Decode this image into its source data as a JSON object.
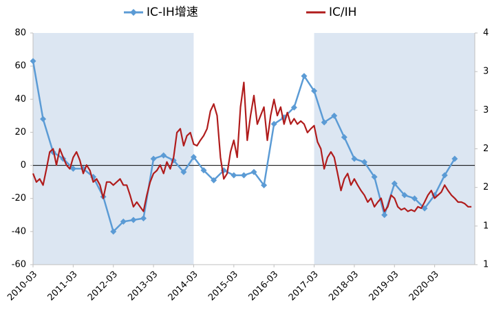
{
  "chart_data": {
    "type": "line",
    "xlim": [
      "2010-03",
      "2021-03"
    ],
    "xticks": [
      "2010-03",
      "2011-03",
      "2012-03",
      "2013-03",
      "2014-03",
      "2015-03",
      "2016-03",
      "2017-03",
      "2018-03",
      "2019-03",
      "2020-03"
    ],
    "ylim": [
      -60,
      80
    ],
    "yticks": [
      -60,
      -40,
      -20,
      0,
      20,
      40,
      60,
      80
    ],
    "y2lim": [
      1,
      4
    ],
    "y2ticks": [
      1,
      {
        "value": 1.5,
        "label": "1"
      },
      2,
      {
        "value": 2.5,
        "label": "2"
      },
      3,
      {
        "value": 3.5,
        "label": "3"
      },
      4
    ],
    "shaded_ranges": [
      [
        "2010-03",
        "2014-03"
      ],
      [
        "2017-03",
        "2021-03"
      ]
    ],
    "shade_color": "#dce6f2",
    "series": [
      {
        "name": "IC-IH增速",
        "color": "#5b9bd5",
        "marker": "diamond",
        "x": [
          "2010-03",
          "2010-06",
          "2010-09",
          "2010-12",
          "2011-03",
          "2011-06",
          "2011-09",
          "2011-12",
          "2012-03",
          "2012-06",
          "2012-09",
          "2012-12",
          "2013-03",
          "2013-06",
          "2013-09",
          "2013-12",
          "2014-03",
          "2014-06",
          "2014-09",
          "2014-12",
          "2015-03",
          "2015-06",
          "2015-09",
          "2015-12",
          "2016-03",
          "2016-06",
          "2016-09",
          "2016-12",
          "2017-03",
          "2017-06",
          "2017-09",
          "2017-12",
          "2018-03",
          "2018-06",
          "2018-09",
          "2018-12",
          "2019-03",
          "2019-06",
          "2019-09",
          "2019-12",
          "2020-03",
          "2020-06",
          "2020-09"
        ],
        "values": [
          63,
          28,
          8,
          4,
          -2,
          -2,
          -7,
          -19,
          -40,
          -34,
          -33,
          -32,
          4,
          6,
          3,
          -4,
          5,
          -3,
          -9,
          -3,
          -6,
          -6,
          -4,
          -12,
          25,
          29,
          35,
          54,
          45,
          26,
          30,
          17,
          4,
          2,
          -7,
          -30,
          -11,
          -18,
          -20,
          -26,
          -18,
          -6,
          4
        ]
      },
      {
        "name": "IC/IH",
        "color": "#b01c1c",
        "axis": "y2",
        "x": [
          "2010-03",
          "2010-04",
          "2010-05",
          "2010-06",
          "2010-07",
          "2010-08",
          "2010-09",
          "2010-10",
          "2010-11",
          "2010-12",
          "2011-01",
          "2011-02",
          "2011-03",
          "2011-04",
          "2011-05",
          "2011-06",
          "2011-07",
          "2011-08",
          "2011-09",
          "2011-10",
          "2011-11",
          "2011-12",
          "2012-01",
          "2012-02",
          "2012-03",
          "2012-04",
          "2012-05",
          "2012-06",
          "2012-07",
          "2012-08",
          "2012-09",
          "2012-10",
          "2012-11",
          "2012-12",
          "2013-01",
          "2013-02",
          "2013-03",
          "2013-04",
          "2013-05",
          "2013-06",
          "2013-07",
          "2013-08",
          "2013-09",
          "2013-10",
          "2013-11",
          "2013-12",
          "2014-01",
          "2014-02",
          "2014-03",
          "2014-04",
          "2014-05",
          "2014-06",
          "2014-07",
          "2014-08",
          "2014-09",
          "2014-10",
          "2014-11",
          "2014-12",
          "2015-01",
          "2015-02",
          "2015-03",
          "2015-04",
          "2015-05",
          "2015-06",
          "2015-07",
          "2015-08",
          "2015-09",
          "2015-10",
          "2015-11",
          "2015-12",
          "2016-01",
          "2016-02",
          "2016-03",
          "2016-04",
          "2016-05",
          "2016-06",
          "2016-07",
          "2016-08",
          "2016-09",
          "2016-10",
          "2016-11",
          "2016-12",
          "2017-01",
          "2017-02",
          "2017-03",
          "2017-04",
          "2017-05",
          "2017-06",
          "2017-07",
          "2017-08",
          "2017-09",
          "2017-10",
          "2017-11",
          "2017-12",
          "2018-01",
          "2018-02",
          "2018-03",
          "2018-04",
          "2018-05",
          "2018-06",
          "2018-07",
          "2018-08",
          "2018-09",
          "2018-10",
          "2018-11",
          "2018-12",
          "2019-01",
          "2019-02",
          "2019-03",
          "2019-04",
          "2019-05",
          "2019-06",
          "2019-07",
          "2019-08",
          "2019-09",
          "2019-10",
          "2019-11",
          "2019-12",
          "2020-01",
          "2020-02",
          "2020-03",
          "2020-04",
          "2020-05",
          "2020-06",
          "2020-07",
          "2020-08",
          "2020-09",
          "2020-10",
          "2020-11",
          "2020-12",
          "2021-01",
          "2021-02"
        ],
        "values": [
          2.18,
          2.07,
          2.11,
          2.03,
          2.24,
          2.46,
          2.5,
          2.29,
          2.5,
          2.39,
          2.29,
          2.24,
          2.39,
          2.46,
          2.35,
          2.18,
          2.29,
          2.22,
          2.07,
          2.11,
          2.03,
          1.86,
          2.07,
          2.07,
          2.03,
          2.07,
          2.11,
          2.03,
          2.03,
          1.9,
          1.75,
          1.81,
          1.75,
          1.69,
          1.9,
          2.07,
          2.18,
          2.22,
          2.29,
          2.18,
          2.33,
          2.24,
          2.39,
          2.71,
          2.76,
          2.54,
          2.67,
          2.71,
          2.56,
          2.54,
          2.61,
          2.67,
          2.76,
          2.99,
          3.08,
          2.93,
          2.39,
          2.11,
          2.18,
          2.46,
          2.61,
          2.39,
          3.04,
          3.36,
          2.61,
          2.93,
          3.19,
          2.82,
          2.93,
          3.04,
          2.61,
          2.93,
          3.14,
          2.93,
          3.04,
          2.82,
          2.97,
          2.82,
          2.89,
          2.82,
          2.86,
          2.82,
          2.71,
          2.76,
          2.8,
          2.59,
          2.5,
          2.24,
          2.39,
          2.46,
          2.39,
          2.18,
          1.96,
          2.11,
          2.18,
          2.03,
          2.11,
          2.03,
          1.96,
          1.9,
          1.81,
          1.86,
          1.75,
          1.81,
          1.86,
          1.69,
          1.75,
          1.9,
          1.86,
          1.75,
          1.71,
          1.73,
          1.69,
          1.71,
          1.69,
          1.75,
          1.73,
          1.81,
          1.9,
          1.96,
          1.86,
          1.9,
          1.94,
          2.03,
          1.96,
          1.9,
          1.86,
          1.81,
          1.81,
          1.79,
          1.75,
          1.75
        ]
      }
    ]
  }
}
